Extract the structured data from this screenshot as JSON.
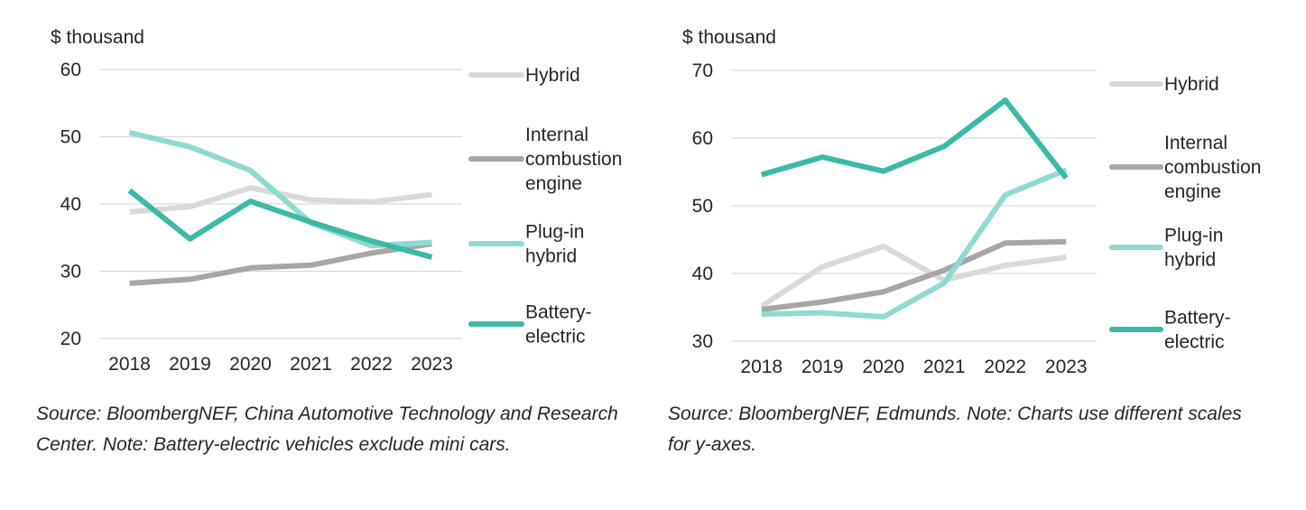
{
  "chart_data": [
    {
      "type": "line",
      "unit_label": "$ thousand",
      "categories": [
        "2018",
        "2019",
        "2020",
        "2021",
        "2022",
        "2023"
      ],
      "ylim": [
        20,
        60
      ],
      "yticks": [
        "20",
        "30",
        "40",
        "50",
        "60"
      ],
      "grid": true,
      "legend_position": "right",
      "series": [
        {
          "name": "Hybrid",
          "legend_lines": [
            "Hybrid"
          ],
          "color": "#d9d9d9",
          "values": [
            38.8,
            39.6,
            42.4,
            40.6,
            40.3,
            41.4
          ]
        },
        {
          "name": "Internal combustion engine",
          "legend_lines": [
            "Internal",
            "combustion",
            "engine"
          ],
          "color": "#a6a6a6",
          "values": [
            28.2,
            28.8,
            30.5,
            30.9,
            32.7,
            34.1
          ]
        },
        {
          "name": "Plug-in hybrid",
          "legend_lines": [
            "Plug-in",
            "hybrid"
          ],
          "color": "#8fdad0",
          "values": [
            50.6,
            48.5,
            45.0,
            37.2,
            33.8,
            34.3
          ]
        },
        {
          "name": "Battery-electric",
          "legend_lines": [
            "Battery-",
            "electric"
          ],
          "color": "#3cb9a6",
          "values": [
            42.0,
            34.8,
            40.4,
            37.3,
            34.5,
            32.1
          ]
        }
      ],
      "source": "Source: BloombergNEF, China Automotive Technology and Research Center. Note: Battery-electric vehicles exclude mini cars."
    },
    {
      "type": "line",
      "unit_label": "$ thousand",
      "categories": [
        "2018",
        "2019",
        "2020",
        "2021",
        "2022",
        "2023"
      ],
      "ylim": [
        30,
        70
      ],
      "yticks": [
        "30",
        "40",
        "50",
        "60",
        "70"
      ],
      "grid": true,
      "legend_position": "right",
      "series": [
        {
          "name": "Hybrid",
          "legend_lines": [
            "Hybrid"
          ],
          "color": "#d9d9d9",
          "values": [
            35.2,
            41.0,
            44.0,
            39.0,
            41.2,
            42.4
          ]
        },
        {
          "name": "Internal combustion engine",
          "legend_lines": [
            "Internal",
            "combustion",
            "engine"
          ],
          "color": "#a6a6a6",
          "values": [
            34.7,
            35.8,
            37.3,
            40.5,
            44.5,
            44.7
          ]
        },
        {
          "name": "Plug-in hybrid",
          "legend_lines": [
            "Plug-in",
            "hybrid"
          ],
          "color": "#8fdad0",
          "values": [
            34.0,
            34.2,
            33.6,
            38.6,
            51.6,
            55.3
          ]
        },
        {
          "name": "Battery-electric",
          "legend_lines": [
            "Battery-",
            "electric"
          ],
          "color": "#3cb9a6",
          "values": [
            54.6,
            57.2,
            55.1,
            58.8,
            65.6,
            54.1
          ]
        }
      ],
      "source": "Source: BloombergNEF, Edmunds. Note: Charts use different scales for y-axes."
    }
  ]
}
